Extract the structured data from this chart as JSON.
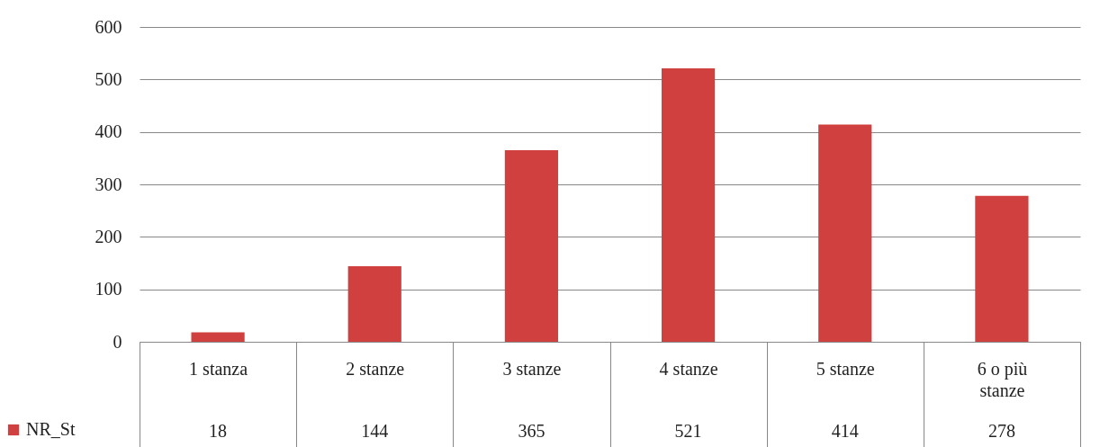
{
  "chart_data": {
    "type": "bar",
    "categories": [
      "1 stanza",
      "2 stanze",
      "3 stanze",
      "4 stanze",
      "5 stanze",
      "6 o più stanze"
    ],
    "series": [
      {
        "name": "NR_St",
        "color": "#d0403e",
        "values": [
          18,
          144,
          365,
          521,
          414,
          278
        ]
      }
    ],
    "ylim": [
      0,
      600
    ],
    "yticks": [
      0,
      100,
      200,
      300,
      400,
      500,
      600
    ],
    "grid": "y",
    "data_labels": true,
    "legend": "bottom left"
  }
}
